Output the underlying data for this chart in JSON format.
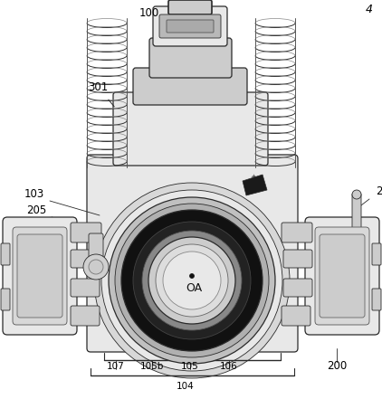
{
  "background_color": "#ffffff",
  "line_color": "#2a2a2a",
  "label_color": "#000000",
  "figure_width": 4.22,
  "figure_height": 4.62,
  "dpi": 100,
  "gray_light": "#e8e8e8",
  "gray_mid": "#cccccc",
  "gray_dark": "#999999",
  "black": "#111111",
  "coil_color": "#444444"
}
